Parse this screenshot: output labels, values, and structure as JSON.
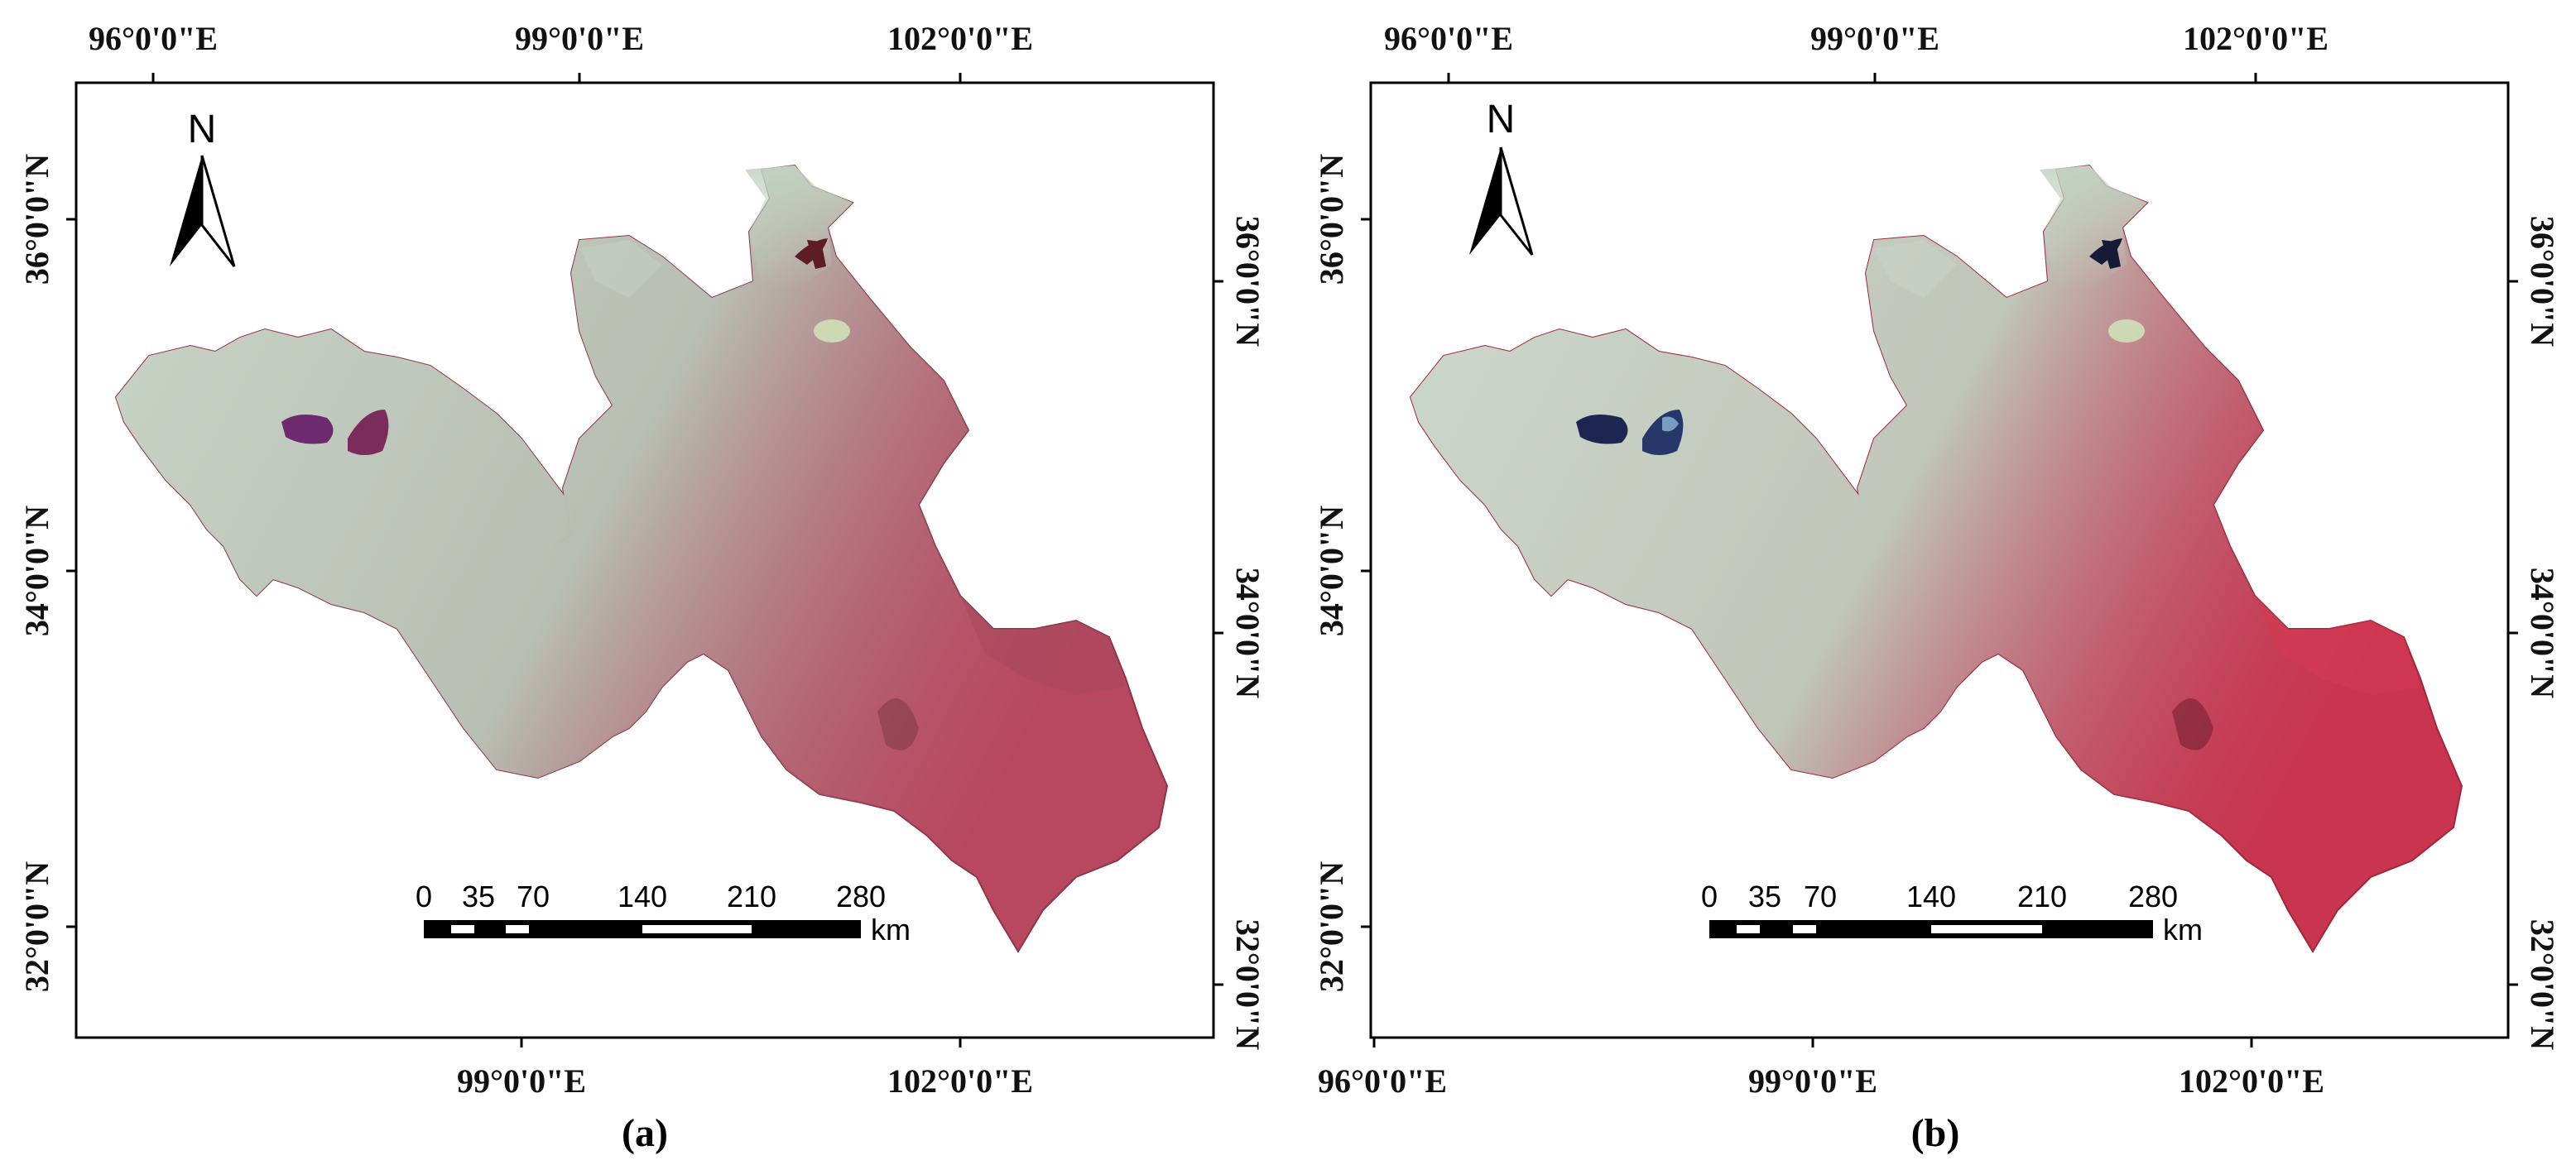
{
  "panels": [
    {
      "caption": "(a)",
      "top_ticks": [
        "96°0'0\"E",
        "99°0'0\"E",
        "102°0'0\"E"
      ],
      "bottom_ticks": [
        "99°0'0\"E",
        "102°0'0\"E"
      ],
      "left_ticks": [
        "36°0'0\"N",
        "34°0'0\"N",
        "32°0'0\"N"
      ],
      "right_ticks": [
        "36°0'0\"N",
        "34°0'0\"N",
        "32°0'0\"N"
      ],
      "north": "N",
      "scale_labels": [
        "0",
        "35",
        "70",
        "140",
        "210",
        "280"
      ],
      "scale_unit": "km",
      "colors": {
        "terrain": "#b8485f",
        "highland": "#b7c7b4",
        "lake": "#6d2a6e"
      }
    },
    {
      "caption": "(b)",
      "top_ticks": [
        "96°0'0\"E",
        "99°0'0\"E",
        "102°0'0\"E"
      ],
      "bottom_ticks": [
        "96°0'0\"E",
        "99°0'0\"E",
        "102°0'0\"E"
      ],
      "left_ticks": [
        "36°0'0\"N",
        "34°0'0\"N",
        "32°0'0\"N"
      ],
      "right_ticks": [
        "36°0'0\"N",
        "34°0'0\"N",
        "32°0'0\"N"
      ],
      "north": "N",
      "scale_labels": [
        "0",
        "35",
        "70",
        "140",
        "210",
        "280"
      ],
      "scale_unit": "km",
      "colors": {
        "terrain": "#c9344e",
        "highland": "#bccbbd",
        "lake": "#1d2550"
      }
    }
  ]
}
